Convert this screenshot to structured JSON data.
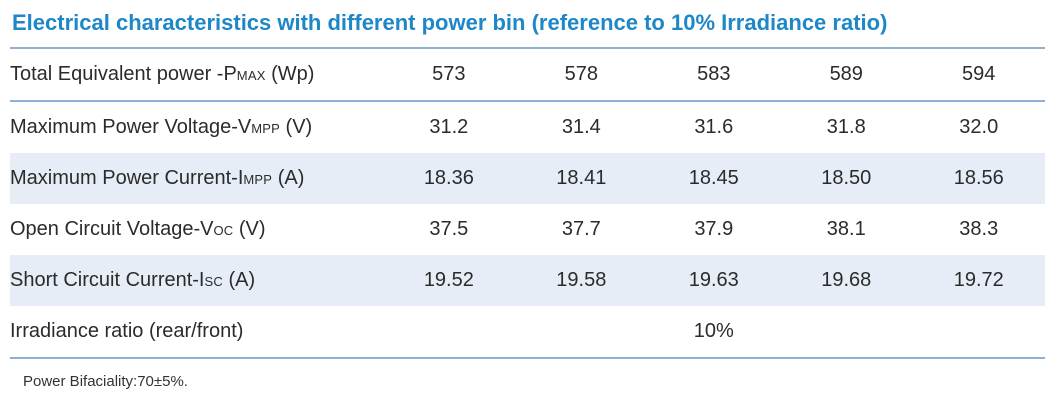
{
  "title": "Electrical characteristics with different power bin (reference to 10%  Irradiance ratio)",
  "colors": {
    "title_blue": "#1e87c8",
    "separator_blue": "#8fb0d6",
    "stripe_background": "#e6edf6",
    "text": "#2b2b2b"
  },
  "table": {
    "rows": [
      {
        "label_main": "Total Equivalent power -P",
        "label_sub": "MAX",
        "label_unit": " (Wp)",
        "values": [
          "573",
          "578",
          "583",
          "589",
          "594"
        ]
      },
      {
        "label_main": "Maximum Power Voltage-V",
        "label_sub": "MPP",
        "label_unit": " (V)",
        "values": [
          "31.2",
          "31.4",
          "31.6",
          "31.8",
          "32.0"
        ]
      },
      {
        "label_main": "Maximum Power Current-I",
        "label_sub": "MPP",
        "label_unit": " (A)",
        "values": [
          "18.36",
          "18.41",
          "18.45",
          "18.50",
          "18.56"
        ]
      },
      {
        "label_main": "Open Circuit Voltage-V",
        "label_sub": "OC",
        "label_unit": " (V)",
        "values": [
          "37.5",
          "37.7",
          "37.9",
          "38.1",
          "38.3"
        ]
      },
      {
        "label_main": "Short Circuit Current-I",
        "label_sub": "SC",
        "label_unit": " (A)",
        "values": [
          "19.52",
          "19.58",
          "19.63",
          "19.68",
          "19.72"
        ]
      },
      {
        "label_main": "Irradiance ratio (rear/front)",
        "label_sub": "",
        "label_unit": "",
        "merged_value": "10%"
      }
    ]
  },
  "footnote": "Power Bifaciality:70±5%."
}
